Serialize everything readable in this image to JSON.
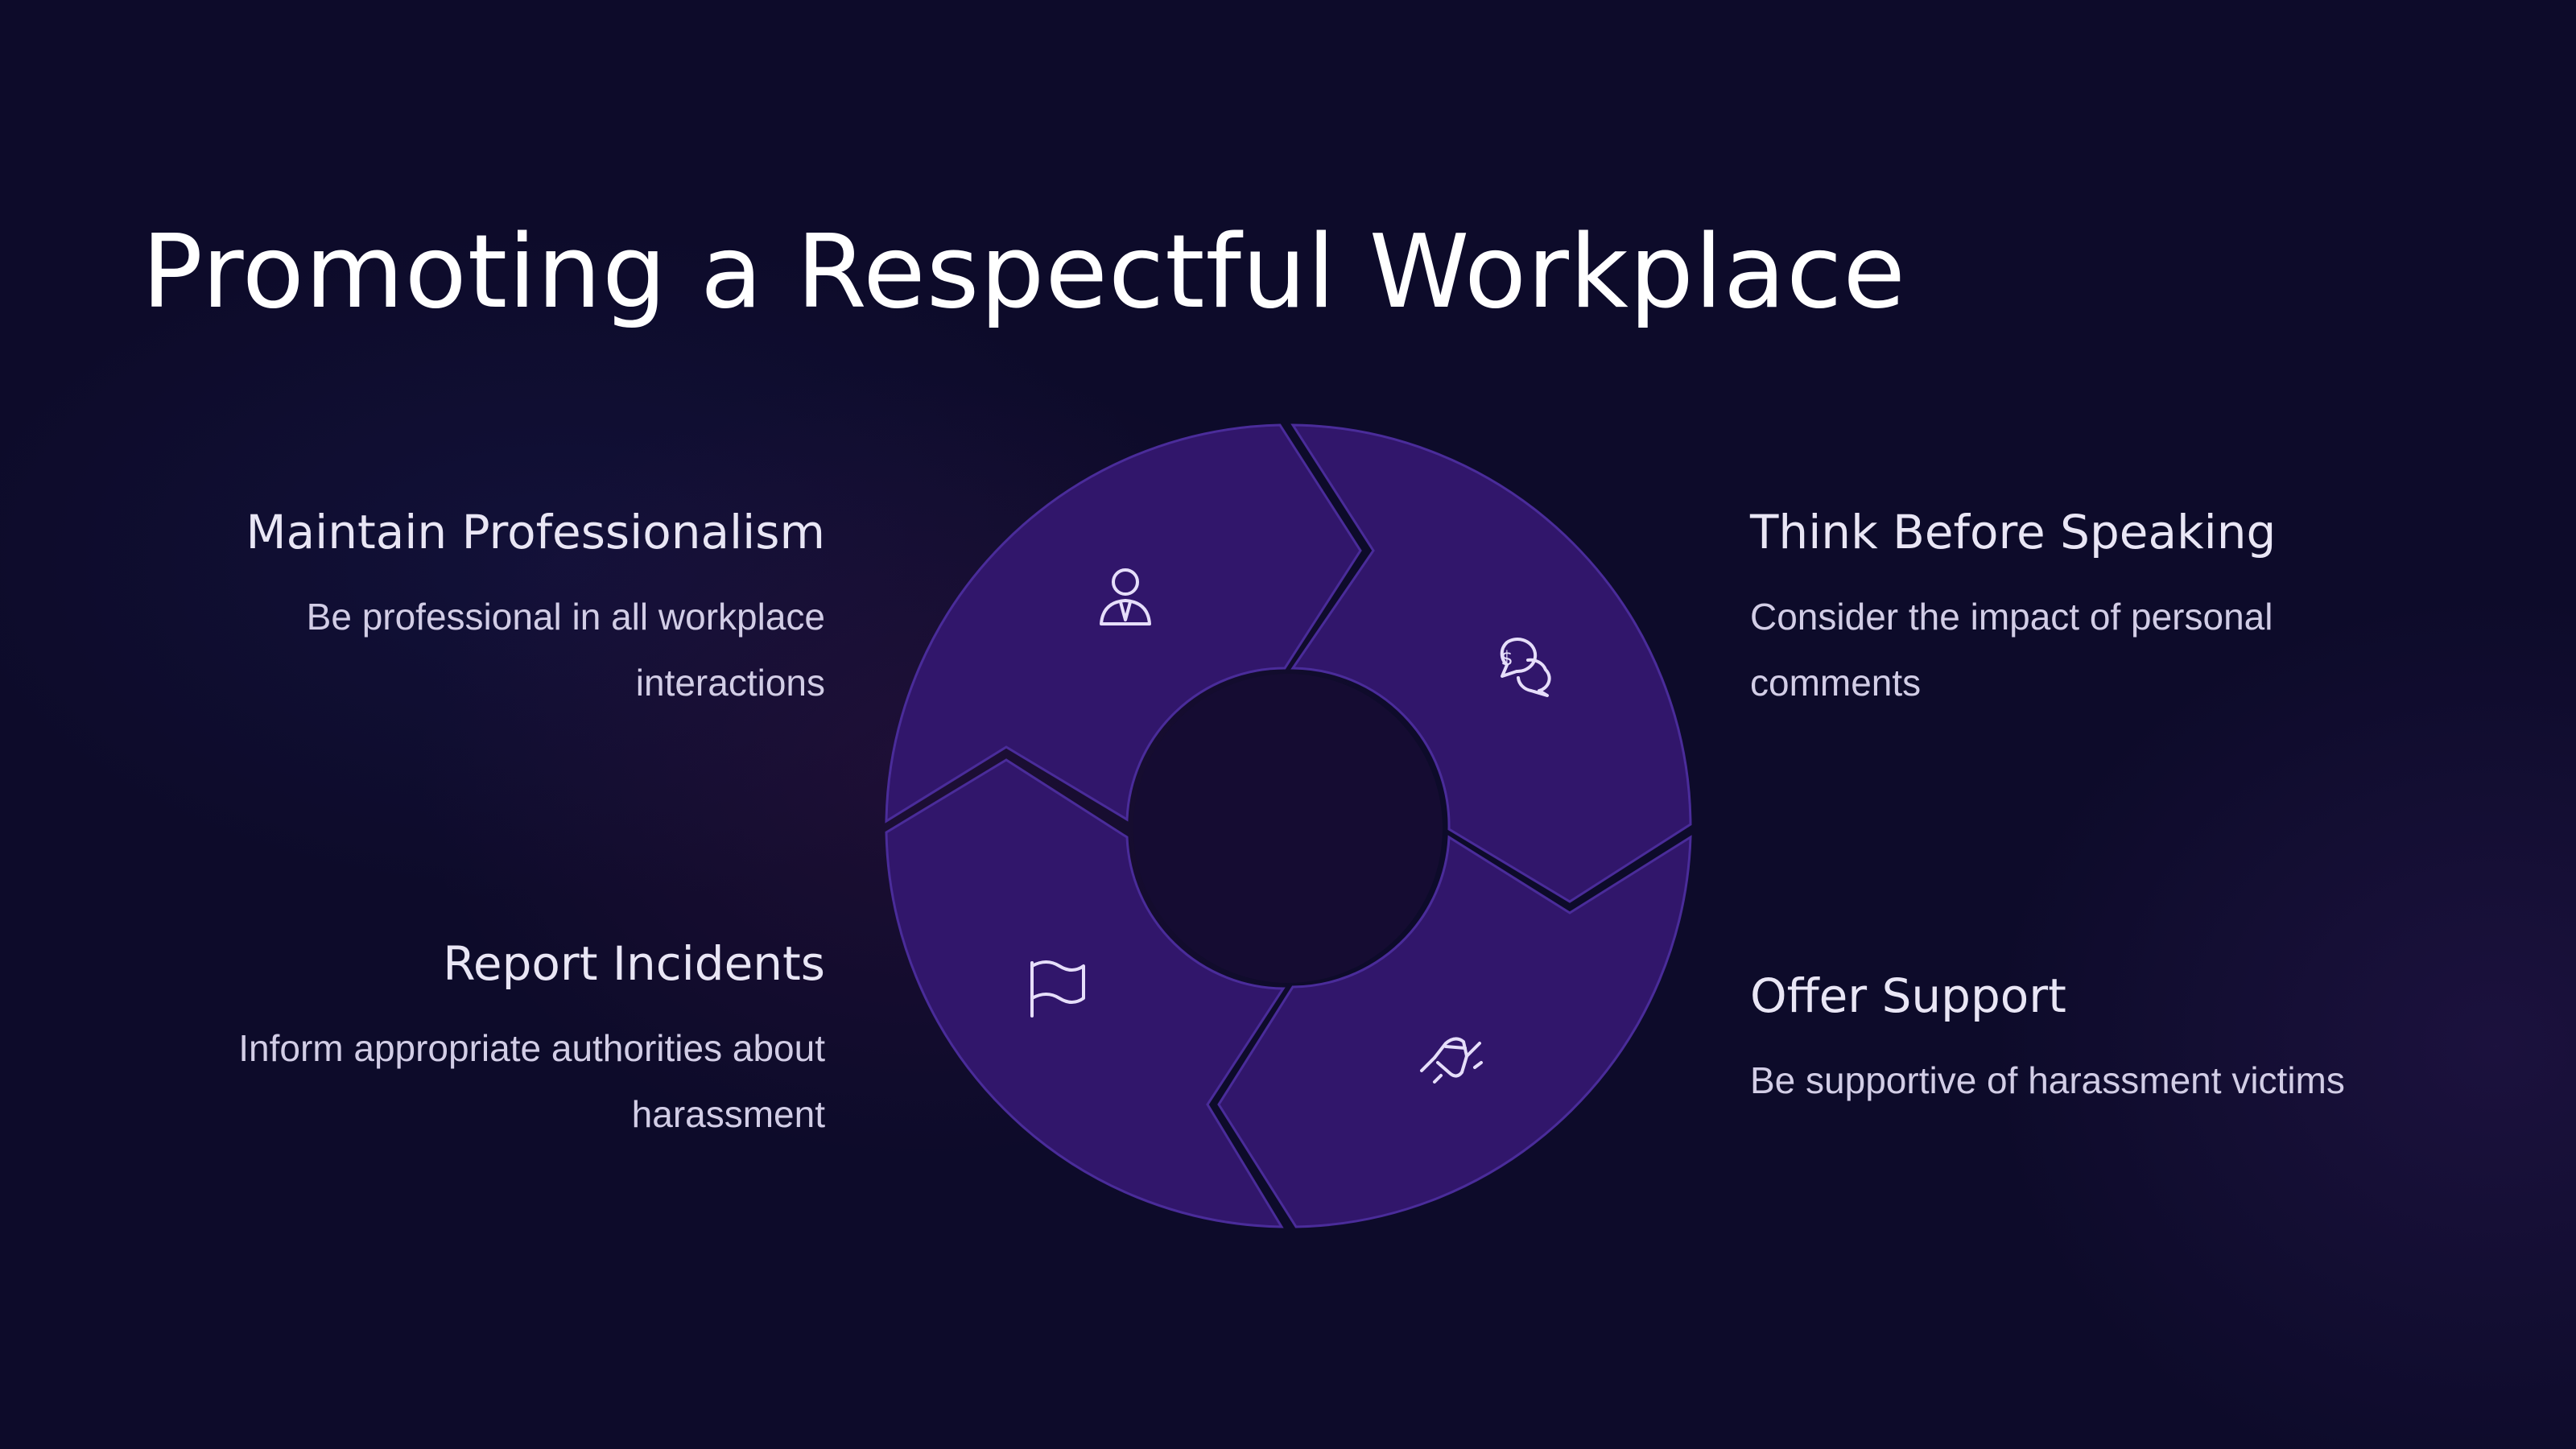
{
  "title": "Promoting a Respectful Workplace",
  "colors": {
    "background": "#0d0b2a",
    "segment_fill": "#31166b",
    "segment_stroke": "#4a2c9a",
    "gap": "#130d35",
    "icon": "#e6defa",
    "heading_text": "#e9e6f5",
    "body_text": "#d2cde6"
  },
  "items": [
    {
      "heading": "Maintain Professionalism",
      "description": "Be professional in all workplace interactions",
      "icon": "person-tie-icon"
    },
    {
      "heading": "Think Before Speaking",
      "description": "Consider the impact of personal comments",
      "icon": "chat-bubbles-dollar-icon"
    },
    {
      "heading": "Report Incidents",
      "description": "Inform appropriate authorities about harassment",
      "icon": "flag-icon"
    },
    {
      "heading": "Offer Support",
      "description": "Be supportive of harassment victims",
      "icon": "handshake-icon"
    }
  ]
}
